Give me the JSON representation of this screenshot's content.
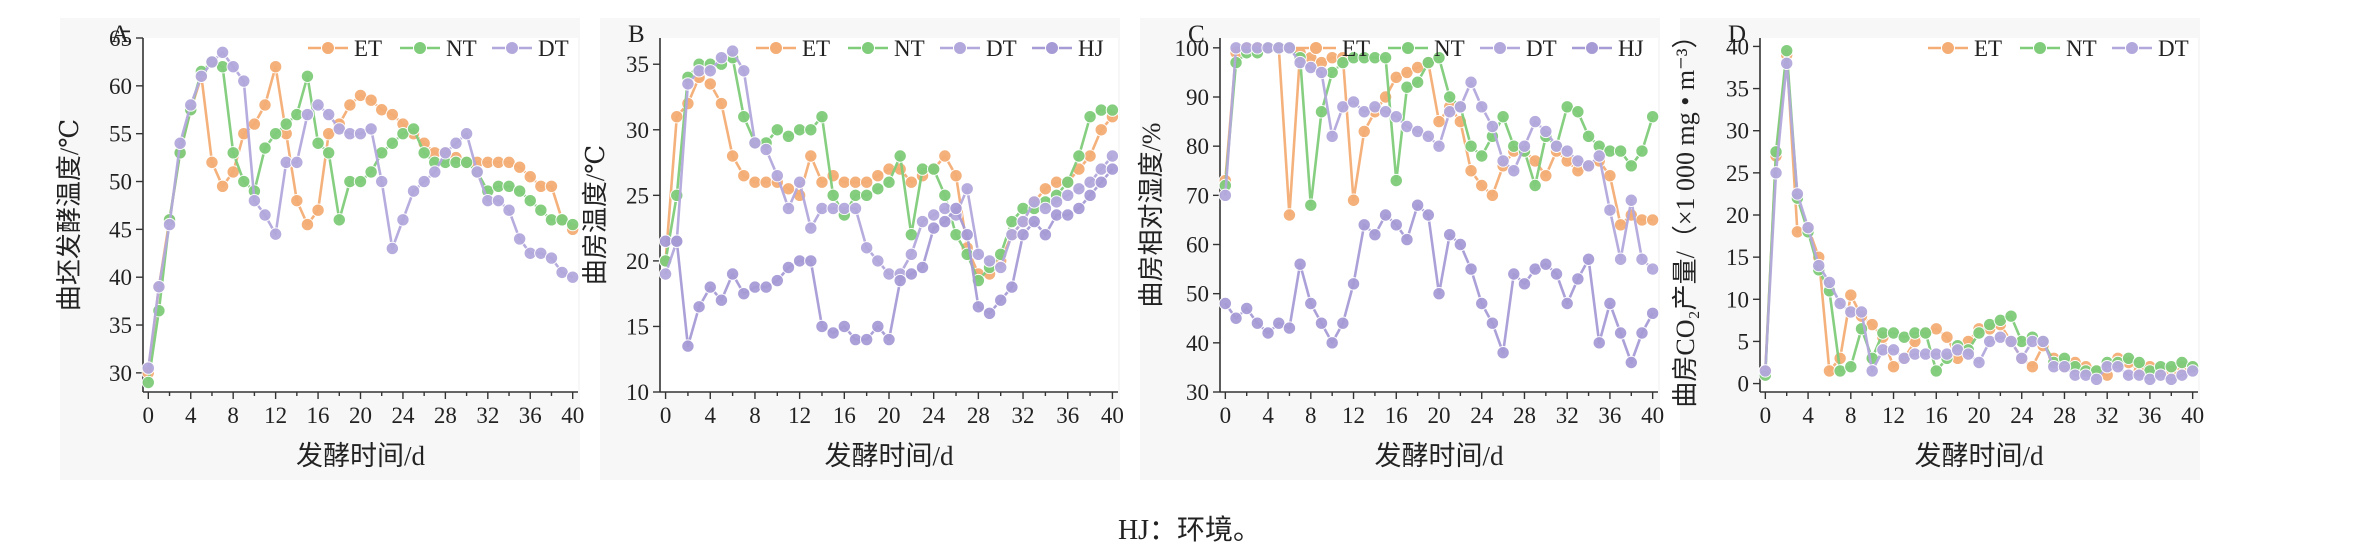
{
  "caption": "HJ：环境。",
  "colors": {
    "ET": "#f4ad74",
    "NT": "#7fcc7a",
    "DT": "#b3a8dc",
    "HJ": "#a79bd6"
  },
  "chart_data": [
    {
      "type": "line",
      "panel_label": "A",
      "ylabel": "曲坯发酵温度/℃",
      "xlabel": "发酵时间/d",
      "ylim": [
        28,
        65
      ],
      "yticks": [
        30,
        35,
        40,
        45,
        50,
        55,
        60,
        65
      ],
      "xlim": [
        -0.5,
        40.5
      ],
      "xticks": [
        0,
        4,
        8,
        12,
        16,
        20,
        24,
        28,
        32,
        36,
        40
      ],
      "x": [
        0,
        1,
        2,
        3,
        4,
        5,
        6,
        7,
        8,
        9,
        10,
        11,
        12,
        13,
        14,
        15,
        16,
        17,
        18,
        19,
        20,
        21,
        22,
        23,
        24,
        25,
        26,
        27,
        28,
        29,
        30,
        31,
        32,
        33,
        34,
        35,
        36,
        37,
        38,
        39,
        40
      ],
      "series": [
        {
          "name": "ET",
          "values": [
            30,
            39,
            46,
            53,
            57.5,
            61,
            52,
            49.5,
            51,
            55,
            56,
            58,
            62,
            55,
            48,
            45.5,
            47,
            55,
            56,
            58,
            59,
            58.5,
            57.5,
            57,
            56,
            55,
            54,
            53,
            53,
            52.5,
            52,
            52,
            52,
            52,
            52,
            51.5,
            50.5,
            49.5,
            49.5,
            46,
            45
          ]
        },
        {
          "name": "NT",
          "values": [
            29,
            36.5,
            46,
            53,
            57.5,
            61.5,
            62.5,
            62,
            53,
            50,
            49,
            53.5,
            55,
            56,
            57,
            61,
            54,
            53,
            46,
            50,
            50,
            51,
            53,
            54,
            55,
            55.5,
            53,
            52,
            52,
            52,
            52,
            51,
            49,
            49.5,
            49.5,
            49,
            48,
            47,
            46,
            46,
            45.5
          ]
        },
        {
          "name": "DT",
          "values": [
            30.5,
            39,
            45.5,
            54,
            58,
            61,
            62.5,
            63.5,
            62,
            60.5,
            48,
            46.5,
            44.5,
            52,
            52,
            57,
            58,
            57,
            55.5,
            55,
            55,
            55.5,
            50,
            43,
            46,
            49,
            50,
            51,
            53,
            54,
            55,
            51,
            48,
            48,
            47,
            44,
            42.5,
            42.5,
            42,
            40.5,
            40
          ]
        }
      ]
    },
    {
      "type": "line",
      "panel_label": "B",
      "ylabel": "曲房温度/℃",
      "xlabel": "发酵时间/d",
      "ylim": [
        10,
        37
      ],
      "yticks": [
        10,
        15,
        20,
        25,
        30,
        35
      ],
      "xlim": [
        -0.5,
        40.5
      ],
      "xticks": [
        0,
        4,
        8,
        12,
        16,
        20,
        24,
        28,
        32,
        36,
        40
      ],
      "x": [
        0,
        1,
        2,
        3,
        4,
        5,
        6,
        7,
        8,
        9,
        10,
        11,
        12,
        13,
        14,
        15,
        16,
        17,
        18,
        19,
        20,
        21,
        22,
        23,
        24,
        25,
        26,
        27,
        28,
        29,
        30,
        31,
        32,
        33,
        34,
        35,
        36,
        37,
        38,
        39,
        40
      ],
      "series": [
        {
          "name": "ET",
          "values": [
            20,
            31,
            32,
            34,
            33.5,
            32,
            28,
            26.5,
            26,
            26,
            26,
            25.5,
            25,
            28,
            26,
            26.5,
            26,
            26,
            26,
            26.5,
            27,
            27,
            26,
            26.5,
            27,
            28,
            26.5,
            21,
            19,
            19,
            20,
            22,
            23,
            24.5,
            25.5,
            26,
            26,
            27,
            28,
            30,
            31
          ]
        },
        {
          "name": "NT",
          "values": [
            20,
            25,
            34,
            35,
            35,
            35,
            35.5,
            31,
            29,
            29,
            30,
            29.5,
            30,
            30,
            31,
            25,
            23.5,
            25,
            25,
            25.5,
            26,
            28,
            22,
            27,
            27,
            25,
            22,
            20.5,
            18.5,
            19.5,
            20.5,
            23,
            24,
            24,
            24.5,
            25,
            26,
            28,
            31,
            31.5,
            31.5
          ]
        },
        {
          "name": "DT",
          "values": [
            19,
            21.5,
            33.5,
            34.5,
            34.5,
            35.5,
            36,
            34.5,
            29,
            28.5,
            26.5,
            24,
            26,
            22.5,
            24,
            24,
            24,
            24,
            21,
            20,
            19,
            19,
            20.5,
            23,
            23.5,
            24,
            23.5,
            25.5,
            20.5,
            20,
            19.5,
            22,
            23,
            24.5,
            24,
            24.5,
            25,
            25.5,
            26,
            27,
            28
          ]
        },
        {
          "name": "HJ",
          "values": [
            21.5,
            21.5,
            13.5,
            16.5,
            18,
            17,
            19,
            17.5,
            18,
            18,
            18.5,
            19.5,
            20,
            20,
            15,
            14.5,
            15,
            14,
            14,
            15,
            14,
            18.5,
            19,
            19.5,
            22.5,
            23,
            24,
            22,
            16.5,
            16,
            17,
            18,
            22,
            23,
            22,
            23.5,
            23.5,
            24,
            25,
            26,
            27
          ]
        }
      ]
    },
    {
      "type": "line",
      "panel_label": "C",
      "ylabel": "曲房相对湿度/%",
      "xlabel": "发酵时间/d",
      "ylim": [
        30,
        102
      ],
      "yticks": [
        30,
        40,
        50,
        60,
        70,
        80,
        90,
        100
      ],
      "xlim": [
        -0.5,
        40.5
      ],
      "xticks": [
        0,
        4,
        8,
        12,
        16,
        20,
        24,
        28,
        32,
        36,
        40
      ],
      "x": [
        0,
        1,
        2,
        3,
        4,
        5,
        6,
        7,
        8,
        9,
        10,
        11,
        12,
        13,
        14,
        15,
        16,
        17,
        18,
        19,
        20,
        21,
        22,
        23,
        24,
        25,
        26,
        27,
        28,
        29,
        30,
        31,
        32,
        33,
        34,
        35,
        36,
        37,
        38,
        39,
        40
      ],
      "series": [
        {
          "name": "ET",
          "values": [
            73,
            99,
            100,
            100,
            100,
            100,
            66,
            99,
            98,
            97,
            98,
            98,
            69,
            83,
            87,
            90,
            94,
            95,
            96,
            97,
            85,
            88,
            85,
            75,
            72,
            70,
            76,
            79,
            79,
            77,
            74,
            79,
            77,
            75,
            76,
            77,
            74,
            64,
            66,
            65,
            65
          ]
        },
        {
          "name": "NT",
          "values": [
            72,
            97,
            99,
            99,
            100,
            100,
            100,
            98,
            68,
            87,
            95,
            97,
            98,
            98,
            98,
            98,
            73,
            92,
            93,
            97,
            98,
            90,
            88,
            80,
            78,
            82,
            86,
            80,
            79,
            72,
            82,
            80,
            88,
            87,
            82,
            80,
            79,
            79,
            76,
            79,
            86
          ]
        },
        {
          "name": "DT",
          "values": [
            70,
            100,
            100,
            100,
            100,
            100,
            100,
            97,
            96,
            95,
            82,
            88,
            89,
            87,
            88,
            87,
            86,
            84,
            83,
            82,
            80,
            87,
            88,
            93,
            88,
            84,
            77,
            75,
            80,
            85,
            83,
            80,
            79,
            77,
            76,
            78,
            67,
            57,
            69,
            57,
            55
          ]
        },
        {
          "name": "HJ",
          "values": [
            48,
            45,
            47,
            44,
            42,
            44,
            43,
            56,
            48,
            44,
            40,
            44,
            52,
            64,
            62,
            66,
            64,
            61,
            68,
            66,
            50,
            62,
            60,
            55,
            48,
            44,
            38,
            54,
            52,
            55,
            56,
            54,
            48,
            53,
            57,
            40,
            48,
            42,
            36,
            42,
            46
          ]
        }
      ]
    },
    {
      "type": "line",
      "panel_label": "D",
      "ylabel": "曲房CO₂产量/（×1 000 mg • m⁻³）",
      "xlabel": "发酵时间/d",
      "ylim": [
        -1,
        41
      ],
      "yticks": [
        0,
        5,
        10,
        15,
        20,
        25,
        30,
        35,
        40
      ],
      "xlim": [
        -0.5,
        40.5
      ],
      "xticks": [
        0,
        4,
        8,
        12,
        16,
        20,
        24,
        28,
        32,
        36,
        40
      ],
      "x": [
        0,
        1,
        2,
        3,
        4,
        5,
        6,
        7,
        8,
        9,
        10,
        11,
        12,
        13,
        14,
        15,
        16,
        17,
        18,
        19,
        20,
        21,
        22,
        23,
        24,
        25,
        26,
        27,
        28,
        29,
        30,
        31,
        32,
        33,
        34,
        35,
        36,
        37,
        38,
        39,
        40
      ],
      "series": [
        {
          "name": "ET",
          "values": [
            1.5,
            27,
            39,
            18,
            18.5,
            15,
            1.5,
            3,
            10.5,
            8,
            7,
            5.5,
            2,
            3,
            5,
            6,
            6.5,
            5.5,
            3,
            5,
            6.5,
            6.5,
            7,
            5,
            3,
            2,
            4.5,
            3,
            2,
            2.5,
            2,
            1.5,
            1,
            3,
            2.5,
            1.5,
            2,
            1.5,
            1.5,
            2,
            2
          ]
        },
        {
          "name": "NT",
          "values": [
            1,
            27.5,
            39.5,
            22,
            18,
            13.5,
            11,
            1.5,
            2,
            6.5,
            3,
            6,
            6,
            5.5,
            6,
            6,
            1.5,
            3,
            4.5,
            4,
            6,
            7,
            7.5,
            8,
            5,
            5.5,
            5,
            2.5,
            3,
            2,
            1.5,
            1.5,
            2.5,
            2.5,
            3,
            2.5,
            1.5,
            2,
            2,
            2.5,
            2
          ]
        },
        {
          "name": "DT",
          "values": [
            1.5,
            25,
            38,
            22.5,
            18.5,
            14,
            12,
            9.5,
            8.5,
            8.5,
            1.5,
            4,
            4,
            3,
            3.5,
            3.5,
            3.5,
            3.5,
            4,
            3.5,
            2.5,
            5,
            5.5,
            5,
            3,
            5,
            5,
            2,
            2,
            1,
            1,
            0.5,
            2,
            2,
            1,
            1,
            0.5,
            1,
            0.5,
            1,
            1.5
          ]
        }
      ]
    }
  ]
}
